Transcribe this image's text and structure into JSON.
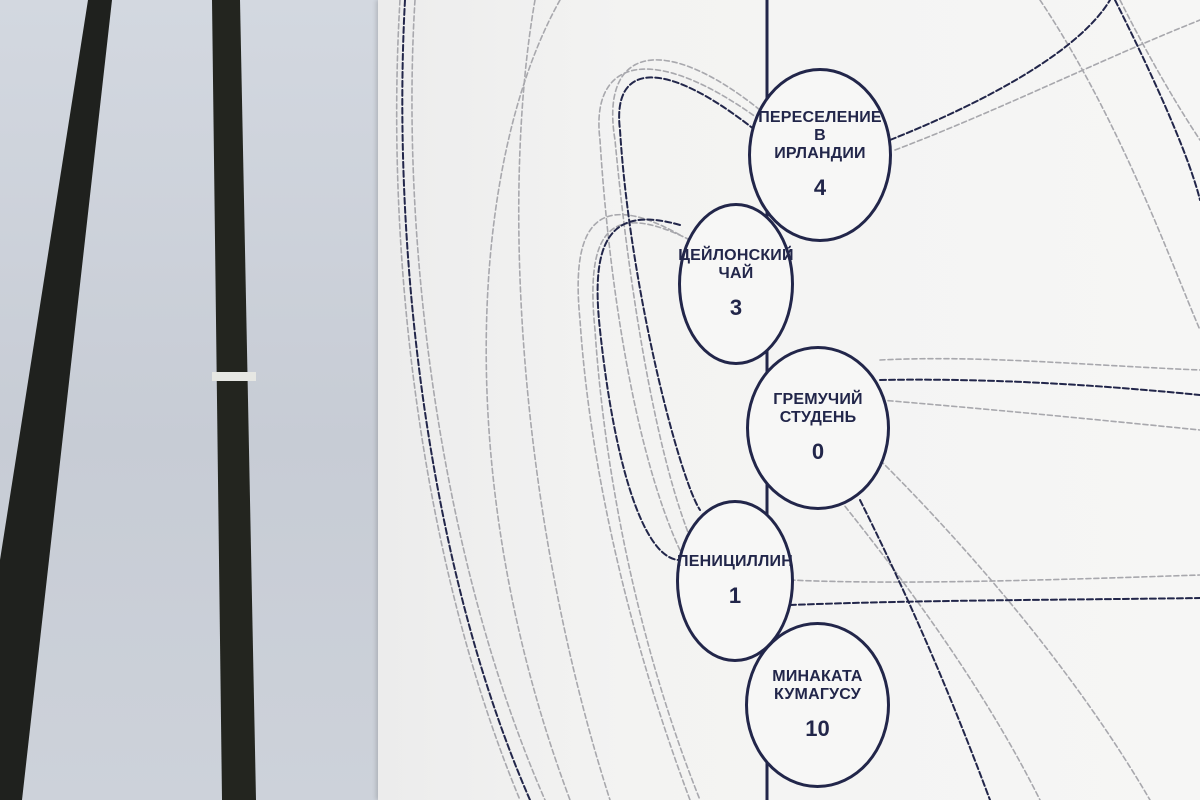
{
  "colors": {
    "ink": "#22264a",
    "grey_line": "#a8a8ad",
    "poster": "#f4f4f3",
    "wall": "#c9ced6",
    "easel": "#1f211e"
  },
  "nodes": [
    {
      "label": "Переселение\nв\nирландии",
      "count": "4"
    },
    {
      "label": "Цейлонский\nчай",
      "count": "3"
    },
    {
      "label": "Гремучий\nстудень",
      "count": "0"
    },
    {
      "label": "Пенициллин",
      "count": "1"
    },
    {
      "label": "Минаката\nкумагусу",
      "count": "10"
    }
  ]
}
